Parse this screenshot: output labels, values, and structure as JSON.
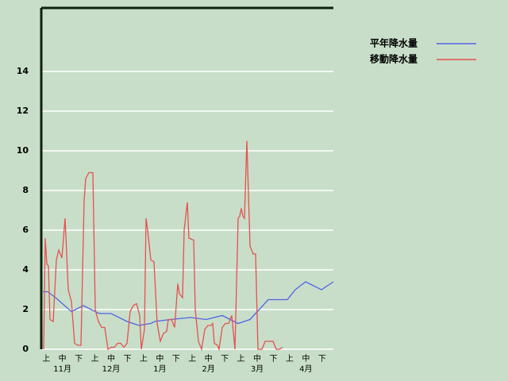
{
  "chart_data": {
    "type": "line",
    "categories": [
      "上",
      "中",
      "下",
      "上",
      "中",
      "下",
      "上",
      "中",
      "下",
      "上",
      "中",
      "下",
      "上",
      "中",
      "下",
      "上",
      "中",
      "下"
    ],
    "months": [
      "11月",
      "12月",
      "1月",
      "2月",
      "3月",
      "4月"
    ],
    "xlim": [
      0,
      184
    ],
    "ylim": [
      0,
      17.2
    ],
    "yticks": [
      0,
      2,
      4,
      6,
      8,
      10,
      12,
      14
    ],
    "grid": true,
    "legend": "top-right",
    "series": [
      {
        "name": "平年降水量",
        "color": "#5064e6",
        "x": [
          1,
          4,
          9,
          19,
          26.5,
          36.5,
          44,
          54,
          61.5,
          69,
          71.5,
          81.5,
          94,
          104,
          114,
          124,
          131.5,
          143,
          155,
          160,
          166.5,
          176.5,
          184
        ],
        "values": [
          2.9,
          2.9,
          2.6,
          1.9,
          2.2,
          1.8,
          1.8,
          1.4,
          1.2,
          1.3,
          1.4,
          1.5,
          1.6,
          1.5,
          1.7,
          1.3,
          1.5,
          2.5,
          2.5,
          3.0,
          3.4,
          3.0,
          3.4
        ]
      },
      {
        "name": "移動降水量",
        "color": "#e65050",
        "x": [
          1.5,
          2.5,
          3.5,
          4.5,
          5.5,
          7.5,
          9.5,
          11,
          13,
          15,
          17,
          19,
          21,
          23,
          25,
          27,
          28,
          30,
          32.5,
          34,
          36,
          38,
          40,
          42,
          44,
          46,
          48,
          50,
          52,
          54,
          56,
          58,
          60,
          62,
          63,
          65,
          66,
          67,
          69,
          71,
          73,
          75,
          77,
          79,
          80,
          82,
          84,
          86,
          87,
          89,
          90,
          92,
          93,
          96,
          97,
          99,
          101,
          103,
          105,
          107,
          108,
          109,
          111,
          112,
          114,
          116,
          118,
          120,
          122,
          124,
          125,
          126,
          127,
          128,
          129.5,
          131.5,
          133.5,
          135,
          136.5,
          139,
          141,
          143,
          146,
          148,
          150,
          152
        ],
        "values": [
          0,
          5.6,
          4.3,
          4.2,
          1.5,
          1.4,
          4.5,
          5.0,
          4.6,
          6.6,
          3.0,
          2.4,
          0.3,
          0.2,
          0.2,
          7.5,
          8.6,
          8.9,
          8.9,
          2.0,
          1.4,
          1.1,
          1.1,
          0,
          0.1,
          0.1,
          0.3,
          0.3,
          0.1,
          0.3,
          1.9,
          2.2,
          2.3,
          1.7,
          0,
          1.0,
          6.6,
          6.0,
          4.5,
          4.4,
          1.3,
          0.4,
          0.8,
          0.9,
          1.5,
          1.5,
          1.1,
          3.3,
          2.8,
          2.6,
          6.0,
          7.4,
          5.6,
          5.5,
          2.0,
          0.4,
          0,
          1.0,
          1.2,
          1.2,
          1.3,
          0.3,
          0.2,
          0,
          1.1,
          1.3,
          1.3,
          1.7,
          0,
          6.6,
          6.7,
          7.1,
          6.7,
          6.6,
          10.5,
          5.2,
          4.8,
          4.8,
          0,
          0,
          0.4,
          0.4,
          0.4,
          0,
          0,
          0.1
        ]
      }
    ]
  }
}
